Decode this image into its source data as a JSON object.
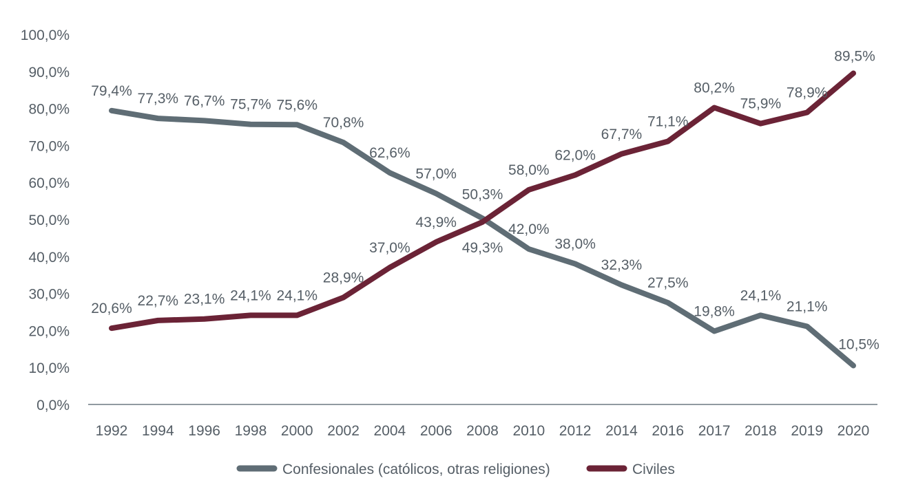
{
  "chart_data": {
    "type": "line",
    "categories": [
      "1992",
      "1994",
      "1996",
      "1998",
      "2000",
      "2002",
      "2004",
      "2006",
      "2008",
      "2010",
      "2012",
      "2014",
      "2016",
      "2017",
      "2018",
      "2019",
      "2020"
    ],
    "y_tick_labels": [
      "0,0%",
      "10,0%",
      "20,0%",
      "30,0%",
      "40,0%",
      "50,0%",
      "60,0%",
      "70,0%",
      "80,0%",
      "90,0%",
      "100,0%"
    ],
    "ylim": [
      0,
      100
    ],
    "grid": false,
    "legend_position": "bottom",
    "series": [
      {
        "name": "Confesionales (católicos, otras religiones)",
        "color": "#5f6d75",
        "values": [
          79.4,
          77.3,
          76.7,
          75.7,
          75.6,
          70.8,
          62.6,
          57.0,
          50.3,
          42.0,
          38.0,
          32.3,
          27.5,
          19.8,
          24.1,
          21.1,
          10.5
        ],
        "labels": [
          "79,4%",
          "77,3%",
          "76,7%",
          "75,7%",
          "75,6%",
          "70,8%",
          "62,6%",
          "57,0%",
          "50,3%",
          "42,0%",
          "38,0%",
          "32,3%",
          "27,5%",
          "19,8%",
          "24,1%",
          "21,1%",
          "10,5%"
        ]
      },
      {
        "name": "Civiles",
        "color": "#6b2336",
        "values": [
          20.6,
          22.7,
          23.1,
          24.1,
          24.1,
          28.9,
          37.0,
          43.9,
          49.3,
          58.0,
          62.0,
          67.7,
          71.1,
          80.2,
          75.9,
          78.9,
          89.5
        ],
        "labels": [
          "20,6%",
          "22,7%",
          "23,1%",
          "24,1%",
          "24,1%",
          "28,9%",
          "37,0%",
          "43,9%",
          "49,3%",
          "58,0%",
          "62,0%",
          "67,7%",
          "71,1%",
          "80,2%",
          "75,9%",
          "78,9%",
          "89,5%"
        ]
      }
    ],
    "text_color": "#555e66",
    "axis_color": "#6b7880"
  }
}
